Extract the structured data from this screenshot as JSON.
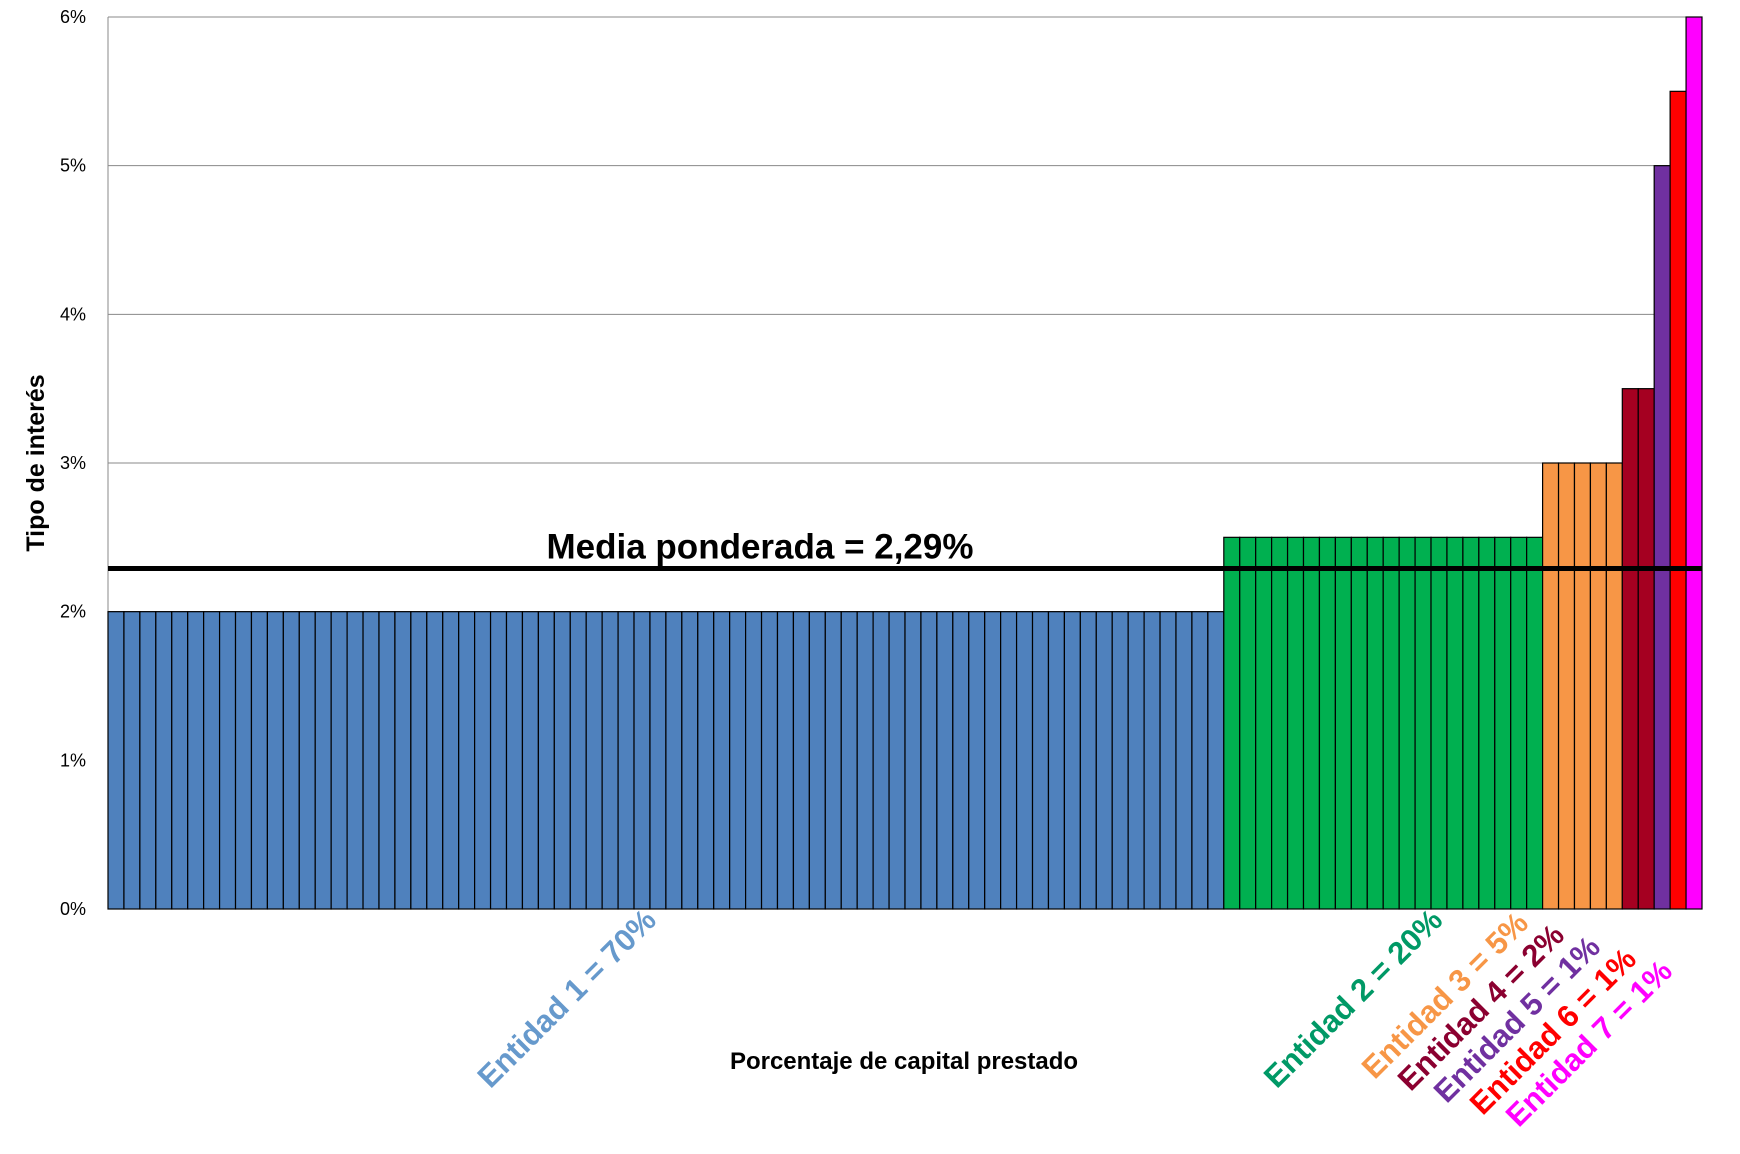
{
  "chart_data": {
    "type": "bar",
    "title": "",
    "xlabel": "Porcentaje de capital prestado",
    "ylabel": "Tipo de interés",
    "ylim": [
      0,
      6
    ],
    "yticks": [
      "0%",
      "1%",
      "2%",
      "3%",
      "4%",
      "5%",
      "6%"
    ],
    "grid": true,
    "series": [
      {
        "label": "Entidad 1 = 70%",
        "share_pct": 70,
        "rate_pct": 2.0,
        "color": "#4F81BD",
        "label_color": "#6699CC"
      },
      {
        "label": "Entidad 2 = 20%",
        "share_pct": 20,
        "rate_pct": 2.5,
        "color": "#00B050",
        "label_color": "#009966"
      },
      {
        "label": "Entidad 3 = 5%",
        "share_pct": 5,
        "rate_pct": 3.0,
        "color": "#F79646",
        "label_color": "#F79646"
      },
      {
        "label": "Entidad 4 = 2%",
        "share_pct": 2,
        "rate_pct": 3.5,
        "color": "#A50021",
        "label_color": "#8B0030"
      },
      {
        "label": "Entidad 5 = 1%",
        "share_pct": 1,
        "rate_pct": 5.0,
        "color": "#7030A0",
        "label_color": "#7030A0"
      },
      {
        "label": "Entidad 6 = 1%",
        "share_pct": 1,
        "rate_pct": 5.5,
        "color": "#FF0000",
        "label_color": "#FF0000"
      },
      {
        "label": "Entidad 7 = 1%",
        "share_pct": 1,
        "rate_pct": 6.0,
        "color": "#FF00FF",
        "label_color": "#FF00FF"
      }
    ],
    "reference_line": {
      "label": "Media ponderada = 2,29%",
      "value": 2.29,
      "color": "#000000"
    }
  }
}
